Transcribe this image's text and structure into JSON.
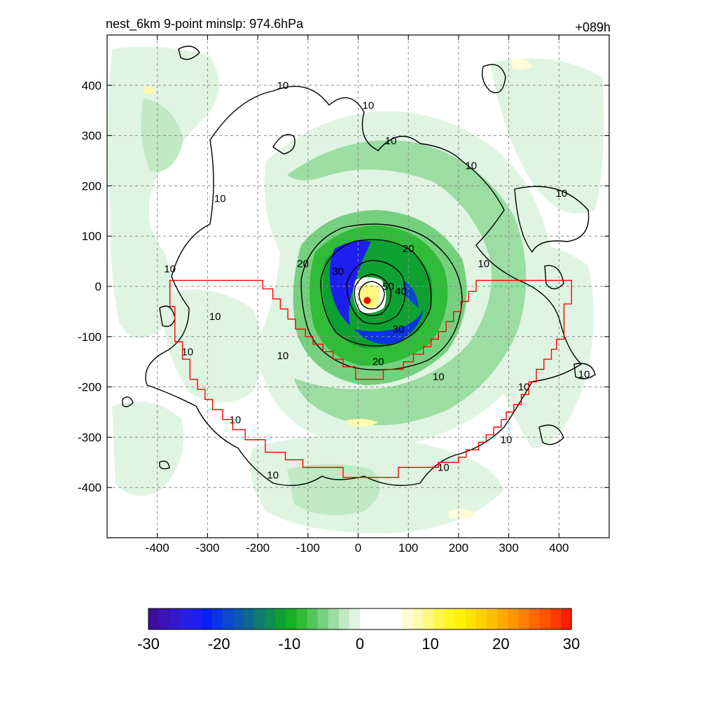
{
  "chart_data": {
    "type": "heatmap",
    "title": "nest_6km  9-point minslp: 974.6hPa",
    "time_label": "+089h",
    "xlabel": "",
    "ylabel": "",
    "xlim": [
      -500,
      500
    ],
    "ylim": [
      -500,
      500
    ],
    "x_ticks": [
      -400,
      -300,
      -200,
      -100,
      0,
      100,
      200,
      300,
      400
    ],
    "y_ticks": [
      400,
      300,
      200,
      100,
      0,
      -100,
      -200,
      -300,
      -400
    ],
    "grid": true,
    "center": {
      "x": 18,
      "y": -28
    },
    "contours": [
      {
        "level": 10,
        "label": "10"
      },
      {
        "level": 20,
        "label": "20"
      },
      {
        "level": 30,
        "label": "30"
      },
      {
        "level": 40,
        "label": "40"
      },
      {
        "level": 50,
        "label": "50"
      }
    ],
    "contour_label_points": [
      {
        "text": "10",
        "x": -150,
        "y": 400
      },
      {
        "text": "10",
        "x": 20,
        "y": 360
      },
      {
        "text": "10",
        "x": 65,
        "y": 290
      },
      {
        "text": "10",
        "x": 225,
        "y": 240
      },
      {
        "text": "10",
        "x": 405,
        "y": 185
      },
      {
        "text": "10",
        "x": -275,
        "y": 175
      },
      {
        "text": "10",
        "x": 250,
        "y": 45
      },
      {
        "text": "10",
        "x": -375,
        "y": 35
      },
      {
        "text": "10",
        "x": -285,
        "y": -60
      },
      {
        "text": "10",
        "x": -340,
        "y": -130
      },
      {
        "text": "10",
        "x": -150,
        "y": -138
      },
      {
        "text": "10",
        "x": 160,
        "y": -180
      },
      {
        "text": "10",
        "x": 330,
        "y": -200
      },
      {
        "text": "10",
        "x": 450,
        "y": -175
      },
      {
        "text": "10",
        "x": -245,
        "y": -265
      },
      {
        "text": "10",
        "x": 295,
        "y": -305
      },
      {
        "text": "10",
        "x": -170,
        "y": -375
      },
      {
        "text": "10",
        "x": 170,
        "y": -360
      },
      {
        "text": "20",
        "x": -110,
        "y": 45
      },
      {
        "text": "20",
        "x": 100,
        "y": 75
      },
      {
        "text": "20",
        "x": 40,
        "y": -150
      },
      {
        "text": "30",
        "x": -40,
        "y": 30
      },
      {
        "text": "30",
        "x": 80,
        "y": -85
      },
      {
        "text": "40",
        "x": 85,
        "y": -10
      },
      {
        "text": "50",
        "x": 60,
        "y": 0
      }
    ],
    "region_polygon": [
      [
        -375,
        12
      ],
      [
        -190,
        12
      ],
      [
        -190,
        -5
      ],
      [
        -170,
        -5
      ],
      [
        -170,
        -25
      ],
      [
        -155,
        -25
      ],
      [
        -155,
        -45
      ],
      [
        -140,
        -45
      ],
      [
        -140,
        -65
      ],
      [
        -125,
        -65
      ],
      [
        -125,
        -85
      ],
      [
        -105,
        -85
      ],
      [
        -105,
        -100
      ],
      [
        -90,
        -100
      ],
      [
        -90,
        -115
      ],
      [
        -70,
        -115
      ],
      [
        -70,
        -130
      ],
      [
        -50,
        -130
      ],
      [
        -50,
        -145
      ],
      [
        -30,
        -145
      ],
      [
        -30,
        -160
      ],
      [
        -5,
        -160
      ],
      [
        -5,
        -185
      ],
      [
        50,
        -185
      ],
      [
        50,
        -165
      ],
      [
        90,
        -165
      ],
      [
        90,
        -150
      ],
      [
        110,
        -150
      ],
      [
        110,
        -135
      ],
      [
        130,
        -135
      ],
      [
        130,
        -120
      ],
      [
        145,
        -120
      ],
      [
        145,
        -105
      ],
      [
        160,
        -105
      ],
      [
        160,
        -90
      ],
      [
        175,
        -90
      ],
      [
        175,
        -70
      ],
      [
        190,
        -70
      ],
      [
        190,
        -50
      ],
      [
        205,
        -50
      ],
      [
        205,
        -30
      ],
      [
        220,
        -30
      ],
      [
        220,
        -10
      ],
      [
        235,
        -10
      ],
      [
        235,
        12
      ],
      [
        425,
        12
      ],
      [
        425,
        -35
      ],
      [
        410,
        -35
      ],
      [
        410,
        -105
      ],
      [
        395,
        -105
      ],
      [
        395,
        -125
      ],
      [
        385,
        -125
      ],
      [
        385,
        -145
      ],
      [
        370,
        -145
      ],
      [
        370,
        -165
      ],
      [
        355,
        -165
      ],
      [
        355,
        -190
      ],
      [
        340,
        -190
      ],
      [
        340,
        -215
      ],
      [
        325,
        -215
      ],
      [
        325,
        -235
      ],
      [
        310,
        -235
      ],
      [
        310,
        -250
      ],
      [
        295,
        -250
      ],
      [
        295,
        -265
      ],
      [
        285,
        -265
      ],
      [
        285,
        -280
      ],
      [
        270,
        -280
      ],
      [
        270,
        -295
      ],
      [
        255,
        -295
      ],
      [
        255,
        -310
      ],
      [
        240,
        -310
      ],
      [
        240,
        -325
      ],
      [
        215,
        -325
      ],
      [
        215,
        -340
      ],
      [
        200,
        -340
      ],
      [
        200,
        -350
      ],
      [
        160,
        -350
      ],
      [
        160,
        -360
      ],
      [
        80,
        -360
      ],
      [
        80,
        -380
      ],
      [
        -30,
        -380
      ],
      [
        -30,
        -360
      ],
      [
        -110,
        -360
      ],
      [
        -110,
        -345
      ],
      [
        -145,
        -345
      ],
      [
        -145,
        -330
      ],
      [
        -185,
        -330
      ],
      [
        -185,
        -305
      ],
      [
        -225,
        -305
      ],
      [
        -225,
        -285
      ],
      [
        -250,
        -285
      ],
      [
        -250,
        -265
      ],
      [
        -270,
        -265
      ],
      [
        -270,
        -245
      ],
      [
        -290,
        -245
      ],
      [
        -290,
        -225
      ],
      [
        -305,
        -225
      ],
      [
        -305,
        -205
      ],
      [
        -320,
        -205
      ],
      [
        -320,
        -185
      ],
      [
        -335,
        -185
      ],
      [
        -335,
        -145
      ],
      [
        -350,
        -145
      ],
      [
        -350,
        -110
      ],
      [
        -365,
        -110
      ],
      [
        -365,
        -40
      ],
      [
        -375,
        -40
      ]
    ],
    "colorbar": {
      "min": -30,
      "max": 30,
      "ticks": [
        "-30",
        "-20",
        "-10",
        "0",
        "10",
        "20",
        "30"
      ],
      "colors": [
        "#3c0ea0",
        "#3a14b6",
        "#3419cc",
        "#2a1ee0",
        "#1c1ff0",
        "#0a1ef8",
        "#0a34e6",
        "#0a48cc",
        "#0c58b0",
        "#0e6890",
        "#107a6e",
        "#0f8c50",
        "#0fa032",
        "#16b024",
        "#30bb38",
        "#52c65a",
        "#76d17e",
        "#9cdda2",
        "#c0e9c4",
        "#e0f4e2",
        "#ffffff",
        "#ffffff",
        "#ffffff",
        "#ffffff",
        "#fffcd8",
        "#fffab0",
        "#fff880",
        "#fff650",
        "#fff520",
        "#fff200",
        "#ffe200",
        "#ffd000",
        "#ffbe00",
        "#ffaa00",
        "#ff9600",
        "#ff8000",
        "#ff6a00",
        "#ff5400",
        "#ff3c00",
        "#ff2000"
      ]
    }
  }
}
